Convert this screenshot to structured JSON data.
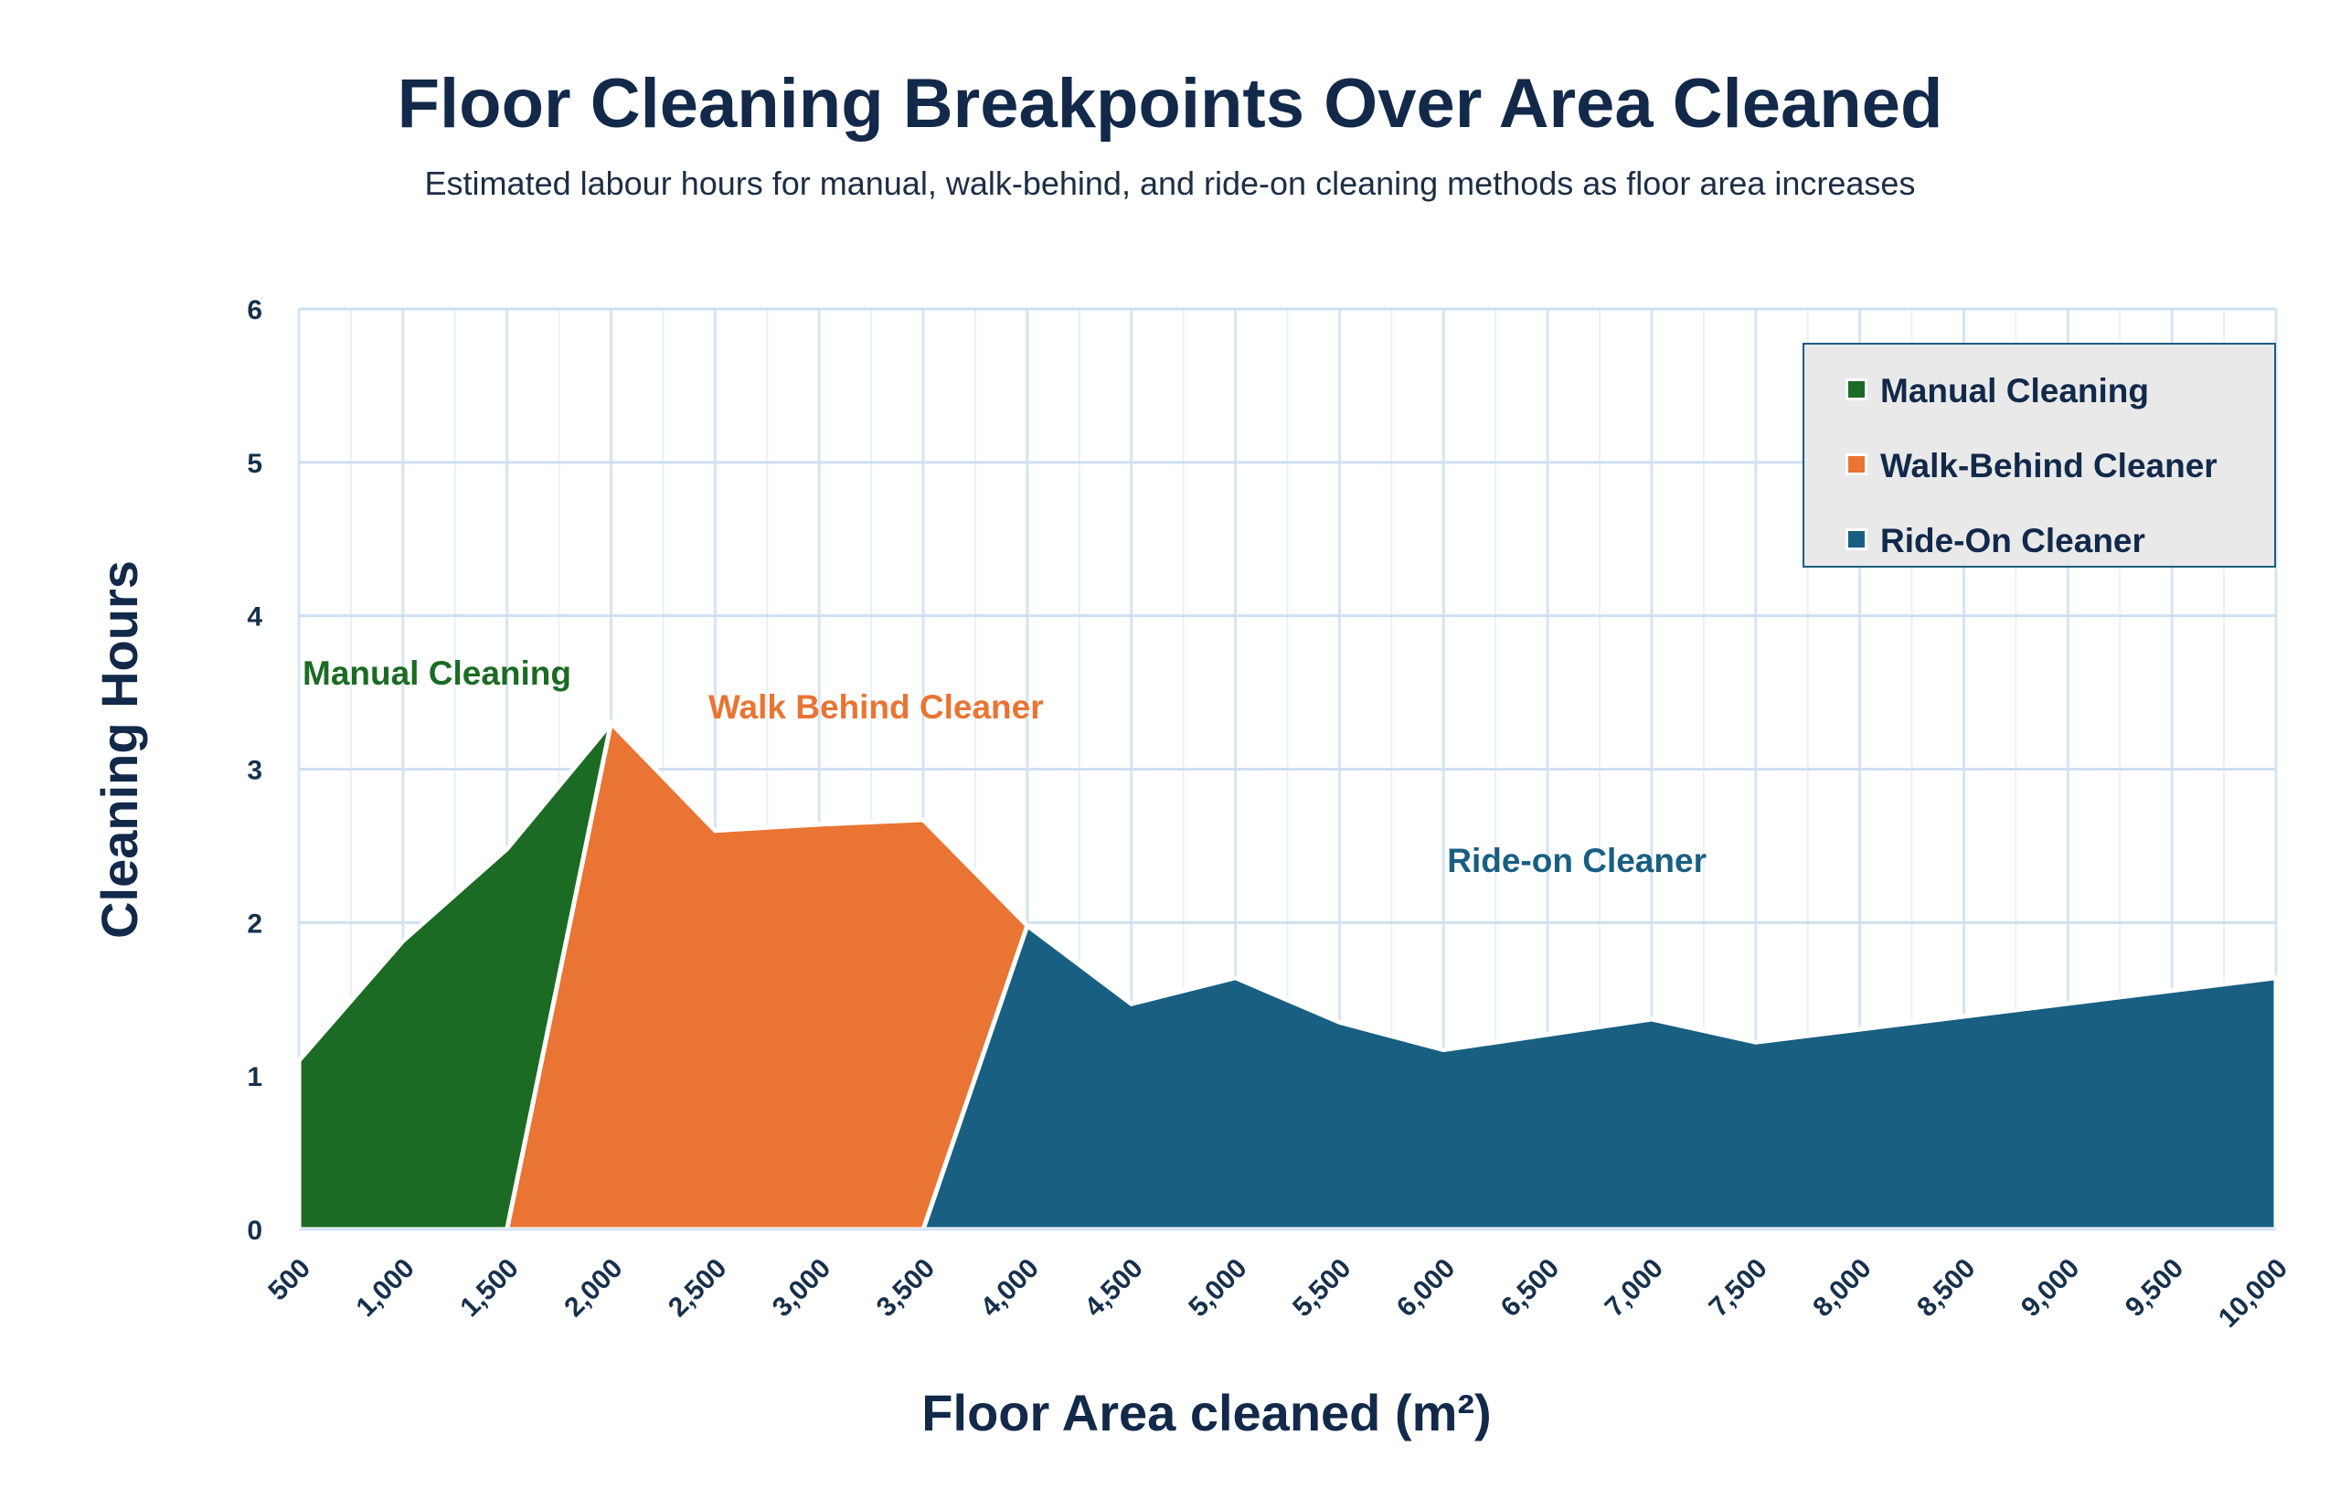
{
  "chart_data": {
    "type": "area",
    "title": "Floor Cleaning Breakpoints Over Area Cleaned",
    "subtitle": "Estimated labour hours for manual, walk-behind, and ride-on cleaning methods as floor area increases",
    "xlabel": "Floor Area cleaned (m²)",
    "ylabel": "Cleaning Hours",
    "xlim": [
      500,
      10000
    ],
    "ylim": [
      0,
      6
    ],
    "x_ticks": [
      500,
      1000,
      1500,
      2000,
      2500,
      3000,
      3500,
      4000,
      4500,
      5000,
      5500,
      6000,
      6500,
      7000,
      7500,
      8000,
      8500,
      9000,
      9500,
      10000
    ],
    "x_tick_labels": [
      "500",
      "1,000",
      "1,500",
      "2,000",
      "2,500",
      "3,000",
      "3,500",
      "4,000",
      "4,500",
      "5,000",
      "5,500",
      "6,000",
      "6,500",
      "7,000",
      "7,500",
      "8,000",
      "8,500",
      "9,000",
      "9,500",
      "10,000"
    ],
    "y_ticks": [
      0,
      1,
      2,
      3,
      4,
      5,
      6
    ],
    "y_tick_labels": [
      "0",
      "1",
      "2",
      "3",
      "4",
      "5",
      "6"
    ],
    "grid": true,
    "legend_position": "top-right",
    "series": [
      {
        "name": "Manual Cleaning",
        "color": "#1c6b24",
        "x": [
          500,
          1000,
          1500,
          2000
        ],
        "y": [
          1.1,
          1.88,
          2.48,
          3.3
        ],
        "base_x": [
          500,
          1500
        ]
      },
      {
        "name": "Walk-Behind Cleaner",
        "color": "#e97433",
        "x": [
          2000,
          2500,
          3000,
          3500,
          4000
        ],
        "y": [
          3.3,
          2.6,
          2.64,
          2.67,
          1.98
        ],
        "base_x": [
          1500,
          3500
        ]
      },
      {
        "name": "Ride-On Cleaner",
        "color": "#185f82",
        "x": [
          4000,
          4500,
          5000,
          5500,
          6000,
          7000,
          7500,
          10000
        ],
        "y": [
          1.98,
          1.47,
          1.64,
          1.35,
          1.17,
          1.37,
          1.22,
          1.64
        ],
        "base_x": [
          3500,
          10000
        ]
      }
    ],
    "annotations": [
      {
        "text": "Manual Cleaning",
        "color": "#1c6b24",
        "x": 500,
        "y": 3.55
      },
      {
        "text": "Walk Behind Cleaner",
        "color": "#e97433",
        "x": 2450,
        "y": 3.33
      },
      {
        "text": "Ride-on Cleaner",
        "color": "#185f82",
        "x": 6000,
        "y": 2.33
      }
    ]
  }
}
